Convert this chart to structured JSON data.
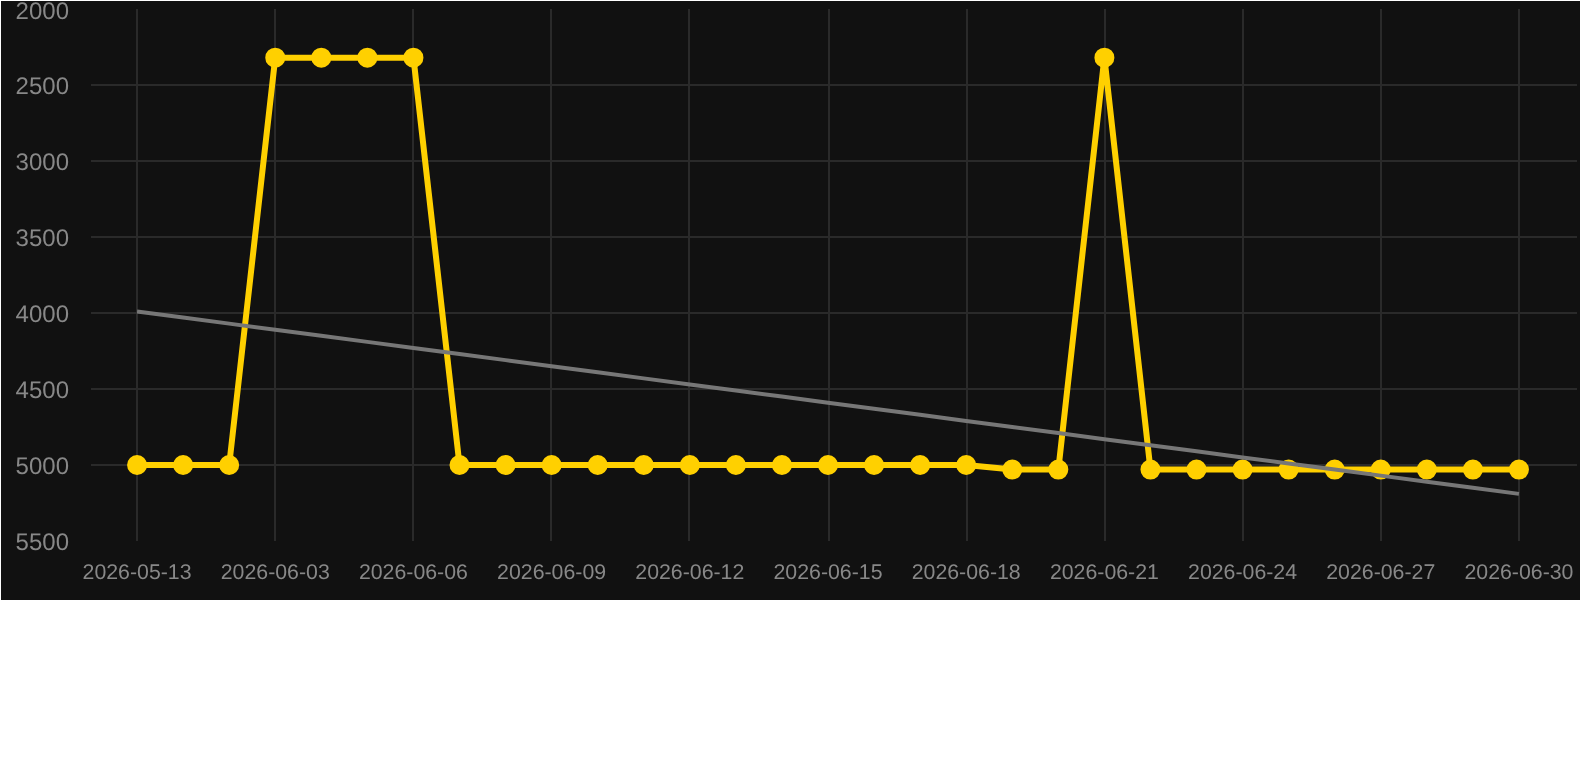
{
  "chart_data": {
    "type": "line",
    "categories": [
      "2026-05-13",
      null,
      null,
      "2026-06-03",
      null,
      null,
      "2026-06-06",
      null,
      null,
      "2026-06-09",
      null,
      null,
      "2026-06-12",
      null,
      null,
      "2026-06-15",
      null,
      null,
      "2026-06-18",
      null,
      null,
      "2026-06-21",
      null,
      null,
      "2026-06-24",
      null,
      null,
      "2026-06-27",
      null,
      null,
      "2026-06-30"
    ],
    "series": [
      {
        "color": "#ffd000",
        "values": [
          5000,
          5000,
          5000,
          2320,
          2320,
          2320,
          2320,
          5000,
          5000,
          5000,
          5000,
          5000,
          5000,
          5000,
          5000,
          5000,
          5000,
          5000,
          5000,
          5030,
          5030,
          2320,
          5030,
          5030,
          5030,
          5030,
          5030,
          5030,
          5030,
          5030,
          5030
        ]
      },
      {
        "type": "line",
        "color": "#777777",
        "marker": "none",
        "values": [
          3990,
          4030,
          4070,
          4110,
          4150,
          4190,
          4230,
          4270,
          4310,
          4350,
          4390,
          4430,
          4470,
          4510,
          4550,
          4590,
          4630,
          4670,
          4710,
          4750,
          4790,
          4830,
          4870,
          4910,
          4950,
          4990,
          5030,
          5070,
          5110,
          5150,
          5190
        ]
      }
    ],
    "marker": "circle",
    "line_style": "solid",
    "grid": true,
    "ylim": [
      5500,
      2000
    ],
    "yticks": [
      2000,
      2500,
      3000,
      3500,
      4000,
      4500,
      5000,
      5500
    ]
  }
}
